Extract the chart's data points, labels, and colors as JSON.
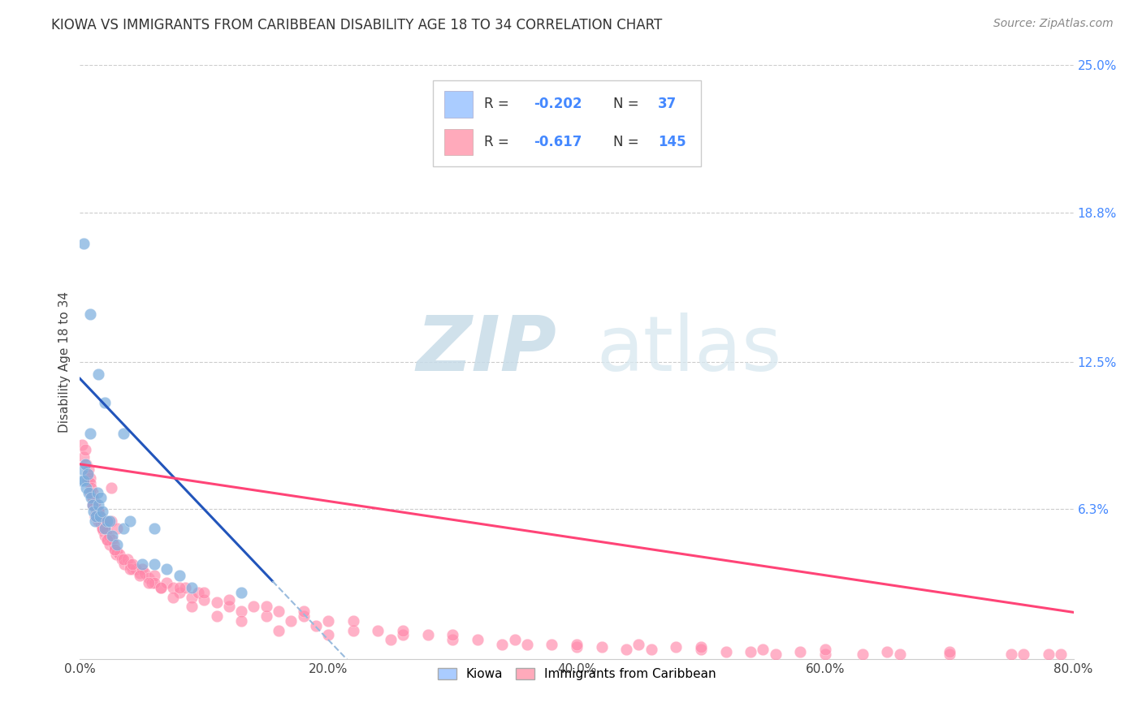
{
  "title": "KIOWA VS IMMIGRANTS FROM CARIBBEAN DISABILITY AGE 18 TO 34 CORRELATION CHART",
  "source": "Source: ZipAtlas.com",
  "ylabel": "Disability Age 18 to 34",
  "xlim": [
    0.0,
    0.8
  ],
  "ylim": [
    0.0,
    0.25
  ],
  "xtick_labels": [
    "0.0%",
    "20.0%",
    "40.0%",
    "60.0%",
    "80.0%"
  ],
  "xtick_vals": [
    0.0,
    0.2,
    0.4,
    0.6,
    0.8
  ],
  "ytick_labels_right": [
    "25.0%",
    "18.8%",
    "12.5%",
    "6.3%"
  ],
  "ytick_vals_right": [
    0.25,
    0.188,
    0.125,
    0.063
  ],
  "right_tick_color": "#4488ff",
  "grid_color": "#cccccc",
  "background_color": "#ffffff",
  "legend_color1": "#aaccff",
  "legend_color2": "#ffaabb",
  "kiowa_color": "#7aaddd",
  "caribbean_color": "#ff88aa",
  "trendline1_color": "#2255bb",
  "trendline2_color": "#ff4477",
  "trendline_ext_color": "#99bbdd",
  "figsize": [
    14.06,
    8.92
  ],
  "dpi": 100,
  "kiowa_x": [
    0.001,
    0.002,
    0.003,
    0.004,
    0.005,
    0.006,
    0.007,
    0.008,
    0.009,
    0.01,
    0.011,
    0.012,
    0.013,
    0.014,
    0.015,
    0.016,
    0.017,
    0.018,
    0.02,
    0.022,
    0.024,
    0.026,
    0.03,
    0.035,
    0.04,
    0.05,
    0.06,
    0.07,
    0.08,
    0.09,
    0.003,
    0.008,
    0.015,
    0.02,
    0.035,
    0.06,
    0.13
  ],
  "kiowa_y": [
    0.075,
    0.08,
    0.075,
    0.082,
    0.072,
    0.078,
    0.07,
    0.095,
    0.068,
    0.065,
    0.062,
    0.058,
    0.06,
    0.07,
    0.065,
    0.06,
    0.068,
    0.062,
    0.055,
    0.058,
    0.058,
    0.052,
    0.048,
    0.055,
    0.058,
    0.04,
    0.04,
    0.038,
    0.035,
    0.03,
    0.175,
    0.145,
    0.12,
    0.108,
    0.095,
    0.055,
    0.028
  ],
  "carib_x": [
    0.002,
    0.003,
    0.004,
    0.005,
    0.006,
    0.006,
    0.007,
    0.008,
    0.008,
    0.009,
    0.01,
    0.01,
    0.011,
    0.012,
    0.012,
    0.013,
    0.014,
    0.015,
    0.015,
    0.016,
    0.017,
    0.018,
    0.018,
    0.019,
    0.02,
    0.02,
    0.021,
    0.022,
    0.023,
    0.024,
    0.025,
    0.026,
    0.027,
    0.028,
    0.029,
    0.03,
    0.032,
    0.034,
    0.036,
    0.038,
    0.04,
    0.042,
    0.045,
    0.048,
    0.05,
    0.052,
    0.055,
    0.058,
    0.06,
    0.065,
    0.07,
    0.075,
    0.08,
    0.085,
    0.09,
    0.095,
    0.1,
    0.11,
    0.12,
    0.13,
    0.14,
    0.15,
    0.16,
    0.17,
    0.18,
    0.19,
    0.2,
    0.22,
    0.24,
    0.26,
    0.28,
    0.3,
    0.32,
    0.34,
    0.36,
    0.38,
    0.4,
    0.42,
    0.44,
    0.46,
    0.48,
    0.5,
    0.52,
    0.54,
    0.56,
    0.58,
    0.6,
    0.63,
    0.66,
    0.7,
    0.04,
    0.06,
    0.08,
    0.1,
    0.12,
    0.15,
    0.18,
    0.22,
    0.26,
    0.3,
    0.35,
    0.4,
    0.45,
    0.5,
    0.55,
    0.6,
    0.65,
    0.7,
    0.75,
    0.76,
    0.78,
    0.79,
    0.01,
    0.015,
    0.025,
    0.03,
    0.02,
    0.015,
    0.01,
    0.008,
    0.012,
    0.018,
    0.022,
    0.028,
    0.035,
    0.042,
    0.048,
    0.055,
    0.065,
    0.075,
    0.09,
    0.11,
    0.13,
    0.16,
    0.2,
    0.25
  ],
  "carib_y": [
    0.09,
    0.085,
    0.088,
    0.082,
    0.078,
    0.075,
    0.08,
    0.076,
    0.074,
    0.072,
    0.07,
    0.068,
    0.065,
    0.064,
    0.066,
    0.063,
    0.06,
    0.062,
    0.058,
    0.06,
    0.057,
    0.055,
    0.058,
    0.054,
    0.056,
    0.052,
    0.054,
    0.05,
    0.052,
    0.048,
    0.072,
    0.05,
    0.048,
    0.046,
    0.044,
    0.045,
    0.044,
    0.042,
    0.04,
    0.042,
    0.04,
    0.038,
    0.038,
    0.036,
    0.038,
    0.036,
    0.034,
    0.032,
    0.035,
    0.03,
    0.032,
    0.03,
    0.028,
    0.03,
    0.026,
    0.028,
    0.025,
    0.024,
    0.022,
    0.02,
    0.022,
    0.018,
    0.02,
    0.016,
    0.018,
    0.014,
    0.016,
    0.012,
    0.012,
    0.01,
    0.01,
    0.008,
    0.008,
    0.006,
    0.006,
    0.006,
    0.005,
    0.005,
    0.004,
    0.004,
    0.005,
    0.004,
    0.003,
    0.003,
    0.002,
    0.003,
    0.002,
    0.002,
    0.002,
    0.002,
    0.038,
    0.032,
    0.03,
    0.028,
    0.025,
    0.022,
    0.02,
    0.016,
    0.012,
    0.01,
    0.008,
    0.006,
    0.006,
    0.005,
    0.004,
    0.004,
    0.003,
    0.003,
    0.002,
    0.002,
    0.002,
    0.002,
    0.068,
    0.062,
    0.058,
    0.055,
    0.058,
    0.062,
    0.065,
    0.07,
    0.06,
    0.055,
    0.05,
    0.046,
    0.042,
    0.04,
    0.035,
    0.032,
    0.03,
    0.026,
    0.022,
    0.018,
    0.016,
    0.012,
    0.01,
    0.008
  ]
}
